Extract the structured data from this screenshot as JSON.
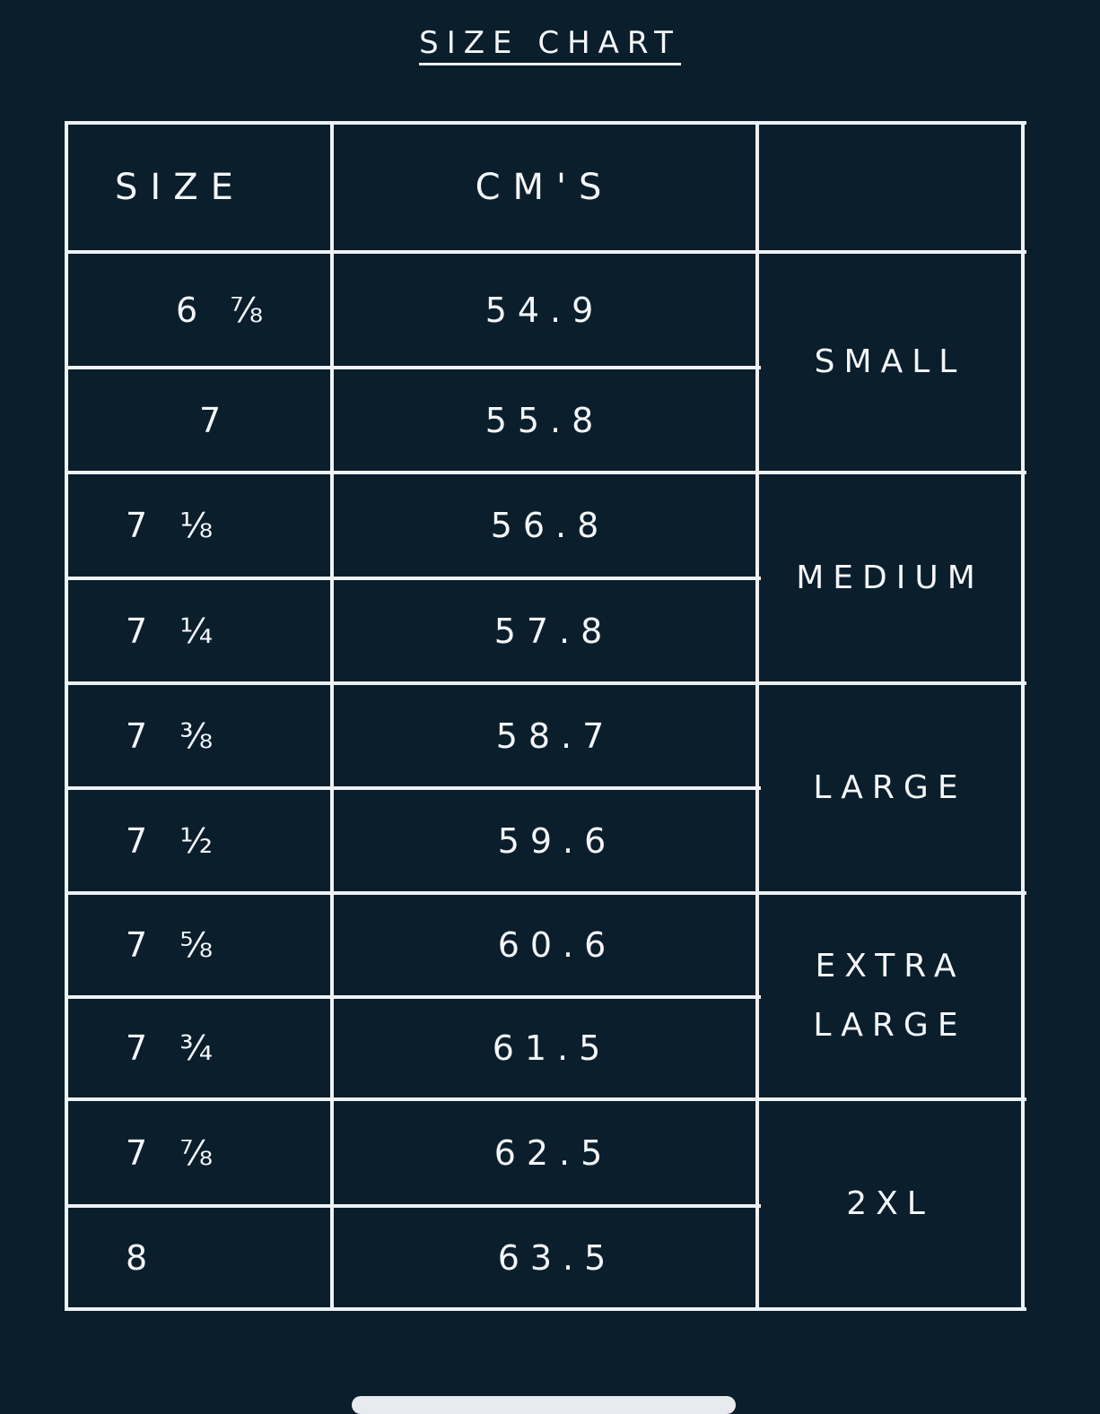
{
  "title": "SIZE CHART",
  "headers": {
    "size": "SIZE",
    "cms": "CM'S",
    "group": ""
  },
  "rows": [
    {
      "size": "6 ⅞",
      "cm": "54.9"
    },
    {
      "size": "7",
      "cm": "55.8"
    },
    {
      "size": "7 ⅛",
      "cm": "56.8"
    },
    {
      "size": "7 ¼",
      "cm": "57.8"
    },
    {
      "size": "7 ⅜",
      "cm": "58.7"
    },
    {
      "size": "7 ½",
      "cm": "59.6"
    },
    {
      "size": "7 ⅝",
      "cm": "60.6"
    },
    {
      "size": "7 ¾",
      "cm": "61.5"
    },
    {
      "size": "7 ⅞",
      "cm": "62.5"
    },
    {
      "size": "8",
      "cm": "63.5"
    }
  ],
  "groups": [
    {
      "lines": [
        "SMALL"
      ]
    },
    {
      "lines": [
        "MEDIUM"
      ]
    },
    {
      "lines": [
        "LARGE"
      ]
    },
    {
      "lines": [
        "EXTRA",
        "LARGE"
      ]
    },
    {
      "lines": [
        "2XL"
      ]
    }
  ],
  "colors": {
    "background": "#0a1e2c",
    "lines": "#eef2f5",
    "text": "#f4f6f8"
  }
}
